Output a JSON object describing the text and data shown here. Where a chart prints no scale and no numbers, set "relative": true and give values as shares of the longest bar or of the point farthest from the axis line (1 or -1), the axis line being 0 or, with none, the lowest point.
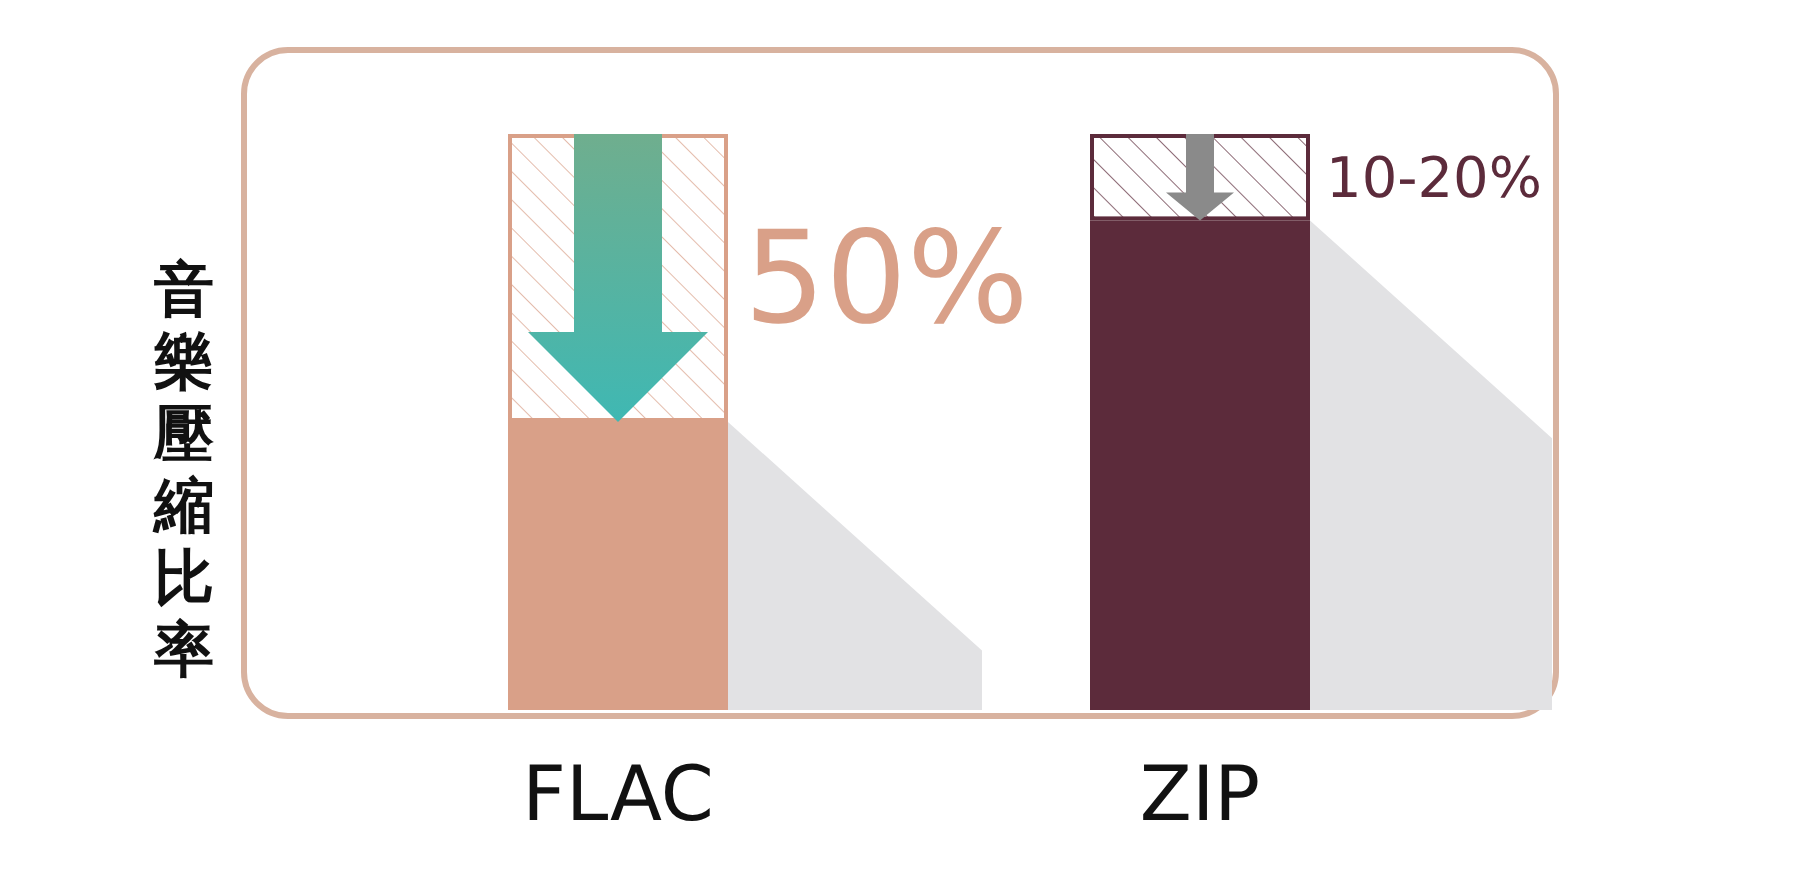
{
  "chart_data": {
    "type": "bar",
    "relative": true,
    "stacked": true,
    "ylabel": "音樂壓縮比率",
    "categories": [
      "FLAC",
      "ZIP"
    ],
    "series": [
      {
        "colors": [
          "#d9a088",
          "#5c2b3b"
        ],
        "values": [
          0.5,
          0.85
        ]
      },
      {
        "colors": [
          "#d9a088",
          "#5c2b3b"
        ],
        "values": [
          0.5,
          0.15
        ]
      }
    ],
    "annotations": [
      "50%",
      "10-20%"
    ]
  }
}
